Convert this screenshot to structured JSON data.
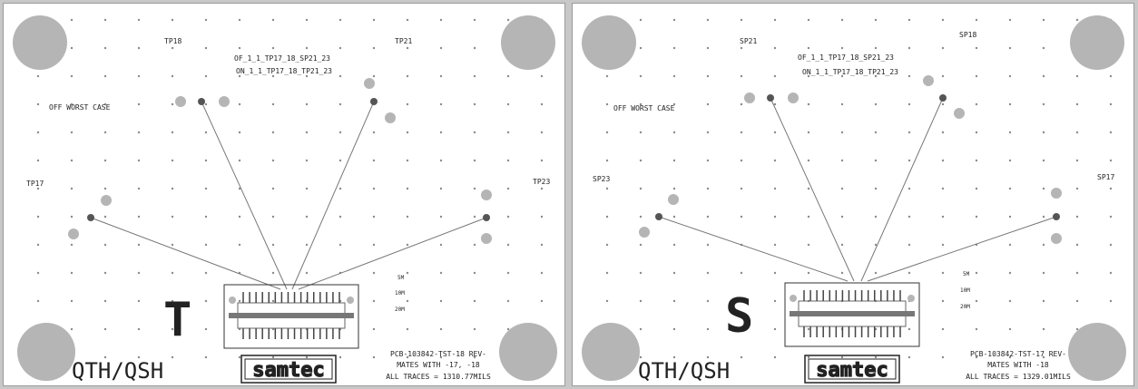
{
  "colors": {
    "pad": "#b5b5b5",
    "trace": "#777777",
    "ink": "#111111",
    "dot": "#8a8a8a"
  },
  "panels": [
    {
      "id": "left",
      "letter": "T",
      "product": "QTH/QSH",
      "probe_labels": [
        "TP18",
        "TP21",
        "TP17",
        "TP23"
      ],
      "net_line1": "OF_1_1_TP17_18_SP21_23",
      "net_line2": "ON_1_1_TP17_18_TP21_23",
      "case_label": "OFF WORST CASE",
      "dim_labels": [
        "5M",
        "10M",
        "20M"
      ],
      "footer": [
        "PCB-103842-TST-18 REV-",
        "MATES WITH -17, -18",
        "ALL TRACES = 1310.77MILS"
      ],
      "logo": "samtec"
    },
    {
      "id": "right",
      "letter": "S",
      "product": "QTH/QSH",
      "probe_labels": [
        "SP21",
        "SP18",
        "SP23",
        "SP17"
      ],
      "net_line1": "OF_1_1_TP17_18_SP21_23",
      "net_line2": "ON_1_1_TP17_18_TP21_23",
      "case_label": "OFF WORST CASE",
      "dim_labels": [
        "5M",
        "10M",
        "20M"
      ],
      "footer": [
        "PCB-103842-TST-17 REV-",
        "MATES WITH -18",
        "ALL TRACES = 1329.01MILS"
      ],
      "logo": "samtec"
    }
  ]
}
